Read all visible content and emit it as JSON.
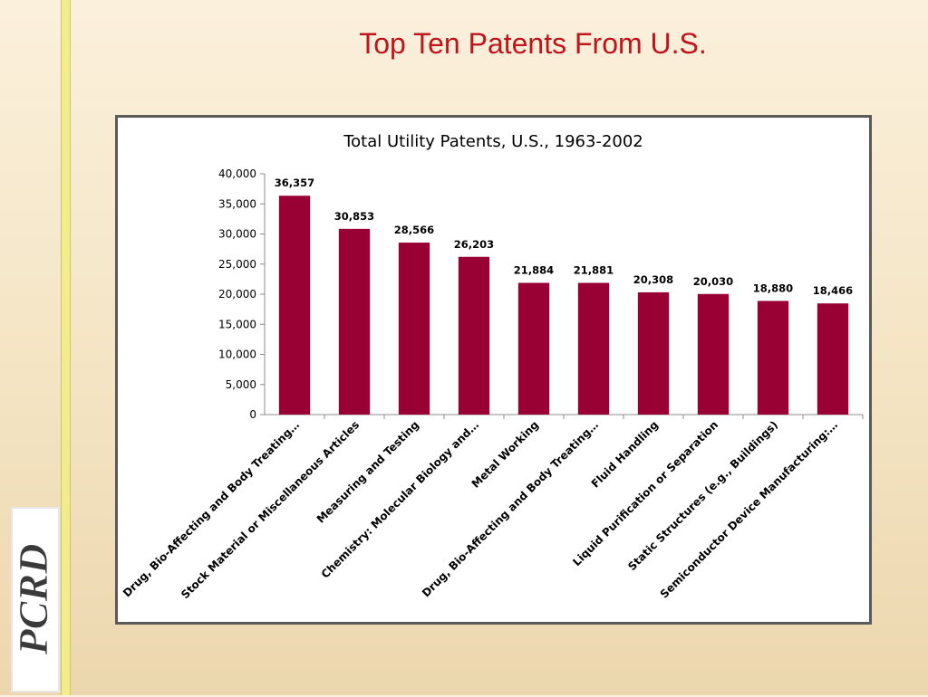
{
  "slide": {
    "title": "Top Ten Patents From U.S.",
    "logo_text": "PCRD"
  },
  "colors": {
    "bar": "#990033",
    "title": "#c0141c",
    "accent_bar": "#f3ec8e"
  },
  "chart_data": {
    "type": "bar",
    "title": "Total Utility Patents, U.S., 1963-2002",
    "categories": [
      "Drug, Bio-Affecting and Body Treating…",
      "Stock Material or Miscellaneous Articles",
      "Measuring and Testing",
      "Chemistry: Molecular Biology and…",
      "Metal Working",
      "Drug, Bio-Affecting and Body Treating…",
      "Fluid Handling",
      "Liquid Purification or Separation",
      "Static Structures (e.g., Buildings)",
      "Semiconductor Device Manufacturing:…"
    ],
    "values": [
      36357,
      30853,
      28566,
      26203,
      21884,
      21881,
      20308,
      20030,
      18880,
      18466
    ],
    "data_labels": [
      "36,357",
      "30,853",
      "28,566",
      "26,203",
      "21,884",
      "21,881",
      "20,308",
      "20,030",
      "18,880",
      "18,466"
    ],
    "yticks": [
      "0",
      "5,000",
      "10,000",
      "15,000",
      "20,000",
      "25,000",
      "30,000",
      "35,000",
      "40,000"
    ],
    "ylim": [
      0,
      40000
    ],
    "xlabel": "",
    "ylabel": "",
    "grid": false,
    "legend": "none"
  }
}
